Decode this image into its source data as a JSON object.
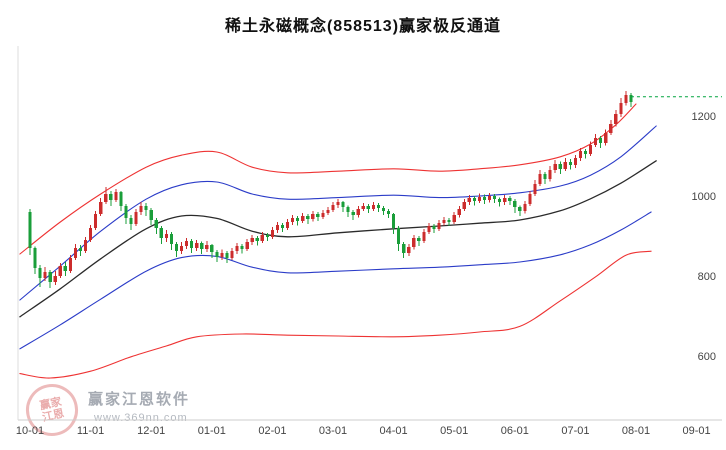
{
  "title": "稀土永磁概念(858513)赢家极反通道",
  "watermark": {
    "brand": "赢家江恩软件",
    "url": "www.369nn.com",
    "stamp_top": "赢家",
    "stamp_bottom": "江恩"
  },
  "colors": {
    "up": "#cc2c2c",
    "down": "#1a9e3a",
    "band_red": "#ee3333",
    "band_blue": "#2b3cc8",
    "band_mid": "#2b2b2b",
    "ref_line": "#00a33e",
    "axis_text": "#444444"
  },
  "chart_data": {
    "type": "candlestick",
    "title": "稀土永磁概念(858513)赢家极反通道",
    "legend_position": "none",
    "grid": false,
    "x_axis": {
      "labels": [
        "10-01",
        "11-01",
        "12-01",
        "01-01",
        "02-01",
        "03-01",
        "04-01",
        "05-01",
        "06-01",
        "07-01",
        "08-01",
        "09-01"
      ],
      "candles_per_month": 12
    },
    "y_axis": {
      "ticks": [
        1200,
        1000,
        800,
        600
      ],
      "side": "right"
    },
    "candles": [
      [
        960,
        968,
        852,
        870
      ],
      [
        870,
        874,
        805,
        820
      ],
      [
        820,
        828,
        772,
        795
      ],
      [
        795,
        822,
        788,
        810
      ],
      [
        810,
        815,
        770,
        785
      ],
      [
        785,
        812,
        778,
        800
      ],
      [
        800,
        832,
        795,
        825
      ],
      [
        825,
        835,
        800,
        812
      ],
      [
        812,
        852,
        808,
        845
      ],
      [
        845,
        880,
        840,
        870
      ],
      [
        870,
        878,
        850,
        862
      ],
      [
        862,
        898,
        858,
        890
      ],
      [
        890,
        928,
        885,
        920
      ],
      [
        920,
        962,
        915,
        955
      ],
      [
        955,
        995,
        950,
        985
      ],
      [
        985,
        1022,
        980,
        1005
      ],
      [
        1005,
        1012,
        975,
        990
      ],
      [
        990,
        1018,
        985,
        1010
      ],
      [
        1010,
        1012,
        962,
        975
      ],
      [
        975,
        980,
        930,
        945
      ],
      [
        945,
        952,
        915,
        930
      ],
      [
        930,
        968,
        925,
        960
      ],
      [
        960,
        985,
        952,
        975
      ],
      [
        975,
        982,
        950,
        965
      ],
      [
        965,
        970,
        928,
        940
      ],
      [
        940,
        945,
        905,
        920
      ],
      [
        920,
        925,
        880,
        895
      ],
      [
        895,
        915,
        885,
        905
      ],
      [
        905,
        910,
        865,
        880
      ],
      [
        880,
        885,
        848,
        862
      ],
      [
        862,
        885,
        855,
        875
      ],
      [
        875,
        895,
        868,
        888
      ],
      [
        888,
        892,
        858,
        870
      ],
      [
        870,
        890,
        862,
        882
      ],
      [
        882,
        886,
        855,
        868
      ],
      [
        868,
        888,
        860,
        878
      ],
      [
        878,
        880,
        845,
        860
      ],
      [
        860,
        865,
        835,
        848
      ],
      [
        848,
        866,
        840,
        858
      ],
      [
        858,
        862,
        832,
        845
      ],
      [
        845,
        870,
        840,
        862
      ],
      [
        862,
        882,
        855,
        875
      ],
      [
        875,
        880,
        856,
        868
      ],
      [
        868,
        892,
        862,
        885
      ],
      [
        885,
        902,
        878,
        895
      ],
      [
        895,
        900,
        876,
        888
      ],
      [
        888,
        910,
        882,
        902
      ],
      [
        902,
        908,
        888,
        898
      ],
      [
        898,
        922,
        892,
        915
      ],
      [
        915,
        935,
        908,
        928
      ],
      [
        928,
        932,
        910,
        920
      ],
      [
        920,
        942,
        915,
        935
      ],
      [
        935,
        952,
        928,
        945
      ],
      [
        945,
        950,
        926,
        938
      ],
      [
        938,
        958,
        932,
        950
      ],
      [
        950,
        955,
        930,
        942
      ],
      [
        942,
        962,
        936,
        955
      ],
      [
        955,
        960,
        938,
        948
      ],
      [
        948,
        965,
        942,
        958
      ],
      [
        958,
        972,
        952,
        965
      ],
      [
        965,
        985,
        960,
        978
      ],
      [
        978,
        992,
        970,
        985
      ],
      [
        985,
        988,
        960,
        972
      ],
      [
        972,
        976,
        948,
        960
      ],
      [
        960,
        965,
        940,
        952
      ],
      [
        952,
        975,
        946,
        968
      ],
      [
        968,
        982,
        962,
        975
      ],
      [
        975,
        980,
        958,
        968
      ],
      [
        968,
        985,
        962,
        978
      ],
      [
        978,
        982,
        960,
        970
      ],
      [
        970,
        975,
        952,
        962
      ],
      [
        962,
        968,
        945,
        955
      ],
      [
        955,
        958,
        905,
        920
      ],
      [
        920,
        925,
        862,
        880
      ],
      [
        880,
        885,
        845,
        858
      ],
      [
        858,
        880,
        850,
        872
      ],
      [
        872,
        902,
        866,
        895
      ],
      [
        895,
        900,
        875,
        888
      ],
      [
        888,
        918,
        882,
        910
      ],
      [
        910,
        932,
        905,
        925
      ],
      [
        925,
        930,
        908,
        918
      ],
      [
        918,
        940,
        912,
        932
      ],
      [
        932,
        948,
        926,
        940
      ],
      [
        940,
        945,
        925,
        935
      ],
      [
        935,
        960,
        930,
        952
      ],
      [
        952,
        975,
        946,
        968
      ],
      [
        968,
        992,
        962,
        985
      ],
      [
        985,
        1002,
        978,
        995
      ],
      [
        995,
        1000,
        976,
        988
      ],
      [
        988,
        1006,
        982,
        998
      ],
      [
        998,
        1004,
        980,
        990
      ],
      [
        990,
        1008,
        984,
        1000
      ],
      [
        1000,
        1005,
        982,
        992
      ],
      [
        992,
        996,
        974,
        985
      ],
      [
        985,
        1002,
        978,
        995
      ],
      [
        995,
        1000,
        978,
        988
      ],
      [
        988,
        992,
        958,
        972
      ],
      [
        972,
        976,
        950,
        962
      ],
      [
        962,
        988,
        956,
        980
      ],
      [
        980,
        1012,
        975,
        1005
      ],
      [
        1005,
        1040,
        1000,
        1030
      ],
      [
        1030,
        1065,
        1025,
        1055
      ],
      [
        1055,
        1060,
        1030,
        1042
      ],
      [
        1042,
        1075,
        1036,
        1065
      ],
      [
        1065,
        1090,
        1058,
        1080
      ],
      [
        1080,
        1086,
        1055,
        1068
      ],
      [
        1068,
        1095,
        1062,
        1085
      ],
      [
        1085,
        1092,
        1066,
        1078
      ],
      [
        1078,
        1102,
        1070,
        1095
      ],
      [
        1095,
        1120,
        1088,
        1112
      ],
      [
        1112,
        1118,
        1094,
        1105
      ],
      [
        1105,
        1136,
        1100,
        1128
      ],
      [
        1128,
        1155,
        1122,
        1145
      ],
      [
        1145,
        1150,
        1120,
        1132
      ],
      [
        1132,
        1166,
        1126,
        1158
      ],
      [
        1158,
        1190,
        1152,
        1180
      ],
      [
        1180,
        1215,
        1174,
        1205
      ],
      [
        1205,
        1245,
        1198,
        1232
      ],
      [
        1232,
        1262,
        1226,
        1252
      ],
      [
        1252,
        1258,
        1222,
        1235
      ]
    ],
    "bands": [
      {
        "name": "lower-red",
        "color": "band_red",
        "width": 1.1,
        "points": [
          [
            -2,
            556
          ],
          [
            4,
            545
          ],
          [
            12,
            562
          ],
          [
            20,
            598
          ],
          [
            27,
            625
          ],
          [
            33,
            648
          ],
          [
            42,
            655
          ],
          [
            51,
            652
          ],
          [
            61,
            650
          ],
          [
            72,
            648
          ],
          [
            81,
            652
          ],
          [
            89,
            660
          ],
          [
            97,
            674
          ],
          [
            105,
            738
          ],
          [
            112,
            798
          ],
          [
            118,
            852
          ],
          [
            123,
            862
          ]
        ]
      },
      {
        "name": "lower-blue",
        "color": "band_blue",
        "width": 1.1,
        "points": [
          [
            -2,
            618
          ],
          [
            6,
            678
          ],
          [
            14,
            742
          ],
          [
            23,
            812
          ],
          [
            30,
            846
          ],
          [
            37,
            849
          ],
          [
            44,
            822
          ],
          [
            51,
            808
          ],
          [
            61,
            812
          ],
          [
            72,
            818
          ],
          [
            81,
            822
          ],
          [
            89,
            828
          ],
          [
            97,
            835
          ],
          [
            105,
            853
          ],
          [
            111,
            878
          ],
          [
            117,
            915
          ],
          [
            123,
            960
          ]
        ]
      },
      {
        "name": "middle-black",
        "color": "band_mid",
        "width": 1.3,
        "points": [
          [
            -2,
            698
          ],
          [
            6,
            768
          ],
          [
            14,
            843
          ],
          [
            23,
            918
          ],
          [
            30,
            950
          ],
          [
            37,
            944
          ],
          [
            44,
            912
          ],
          [
            51,
            898
          ],
          [
            61,
            908
          ],
          [
            72,
            918
          ],
          [
            81,
            925
          ],
          [
            89,
            932
          ],
          [
            97,
            940
          ],
          [
            105,
            963
          ],
          [
            111,
            993
          ],
          [
            117,
            1032
          ],
          [
            124,
            1088
          ]
        ]
      },
      {
        "name": "upper-blue",
        "color": "band_blue",
        "width": 1.1,
        "points": [
          [
            -2,
            740
          ],
          [
            6,
            825
          ],
          [
            14,
            912
          ],
          [
            23,
            992
          ],
          [
            30,
            1028
          ],
          [
            37,
            1035
          ],
          [
            44,
            1005
          ],
          [
            51,
            992
          ],
          [
            61,
            996
          ],
          [
            72,
            1002
          ],
          [
            81,
            996
          ],
          [
            89,
            1000
          ],
          [
            97,
            1008
          ],
          [
            105,
            1025
          ],
          [
            111,
            1052
          ],
          [
            117,
            1098
          ],
          [
            124,
            1175
          ]
        ]
      },
      {
        "name": "upper-red",
        "color": "band_red",
        "width": 1.1,
        "points": [
          [
            -2,
            855
          ],
          [
            6,
            935
          ],
          [
            14,
            1005
          ],
          [
            23,
            1072
          ],
          [
            30,
            1102
          ],
          [
            37,
            1110
          ],
          [
            44,
            1072
          ],
          [
            51,
            1058
          ],
          [
            61,
            1062
          ],
          [
            72,
            1068
          ],
          [
            81,
            1062
          ],
          [
            89,
            1068
          ],
          [
            97,
            1078
          ],
          [
            105,
            1098
          ],
          [
            111,
            1130
          ],
          [
            116,
            1178
          ],
          [
            120,
            1230
          ]
        ]
      }
    ],
    "ref_line": {
      "price": 1248,
      "style": "dotted",
      "color": "ref_line",
      "from_index": 119
    }
  }
}
